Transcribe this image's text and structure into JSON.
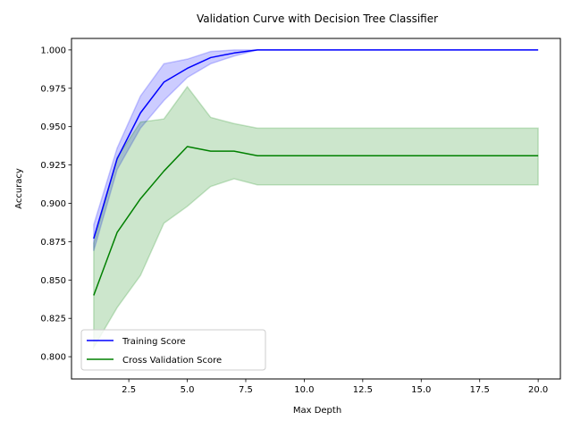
{
  "chart_data": {
    "type": "line",
    "title": "Validation Curve with Decision Tree Classifier",
    "xlabel": "Max Depth",
    "ylabel": "Accuracy",
    "xlim": [
      0.05,
      20.95
    ],
    "ylim": [
      0.7855,
      1.0075
    ],
    "xticks": [
      2.5,
      5.0,
      7.5,
      10.0,
      12.5,
      15.0,
      17.5,
      20.0
    ],
    "xtick_labels": [
      "2.5",
      "5.0",
      "7.5",
      "10.0",
      "12.5",
      "15.0",
      "17.5",
      "20.0"
    ],
    "yticks": [
      0.8,
      0.825,
      0.85,
      0.875,
      0.9,
      0.925,
      0.95,
      0.975,
      1.0
    ],
    "ytick_labels": [
      "0.800",
      "0.825",
      "0.850",
      "0.875",
      "0.900",
      "0.925",
      "0.950",
      "0.975",
      "1.000"
    ],
    "grid": false,
    "legend_position": "lower-left",
    "x": [
      1,
      2,
      3,
      4,
      5,
      6,
      7,
      8,
      9,
      10,
      11,
      12,
      13,
      14,
      15,
      16,
      17,
      18,
      19,
      20
    ],
    "series": [
      {
        "name": "Training Score",
        "color": "#0000ff",
        "band_color": "#0000ff",
        "values": [
          0.877,
          0.929,
          0.959,
          0.979,
          0.988,
          0.995,
          0.998,
          1.0,
          1.0,
          1.0,
          1.0,
          1.0,
          1.0,
          1.0,
          1.0,
          1.0,
          1.0,
          1.0,
          1.0,
          1.0
        ],
        "upper": [
          0.886,
          0.936,
          0.97,
          0.991,
          0.994,
          0.999,
          1.0,
          1.0,
          1.0,
          1.0,
          1.0,
          1.0,
          1.0,
          1.0,
          1.0,
          1.0,
          1.0,
          1.0,
          1.0,
          1.0
        ],
        "lower": [
          0.869,
          0.922,
          0.949,
          0.967,
          0.982,
          0.991,
          0.996,
          1.0,
          1.0,
          1.0,
          1.0,
          1.0,
          1.0,
          1.0,
          1.0,
          1.0,
          1.0,
          1.0,
          1.0,
          1.0
        ]
      },
      {
        "name": "Cross Validation Score",
        "color": "#008000",
        "band_color": "#008000",
        "values": [
          0.84,
          0.881,
          0.903,
          0.921,
          0.937,
          0.934,
          0.934,
          0.931,
          0.931,
          0.931,
          0.931,
          0.931,
          0.931,
          0.931,
          0.931,
          0.931,
          0.931,
          0.931,
          0.931,
          0.931
        ],
        "upper": [
          0.874,
          0.93,
          0.953,
          0.955,
          0.976,
          0.956,
          0.952,
          0.949,
          0.949,
          0.949,
          0.949,
          0.949,
          0.949,
          0.949,
          0.949,
          0.949,
          0.949,
          0.949,
          0.949,
          0.949
        ],
        "lower": [
          0.806,
          0.832,
          0.853,
          0.887,
          0.898,
          0.911,
          0.916,
          0.912,
          0.912,
          0.912,
          0.912,
          0.912,
          0.912,
          0.912,
          0.912,
          0.912,
          0.912,
          0.912,
          0.912,
          0.912
        ]
      }
    ]
  }
}
